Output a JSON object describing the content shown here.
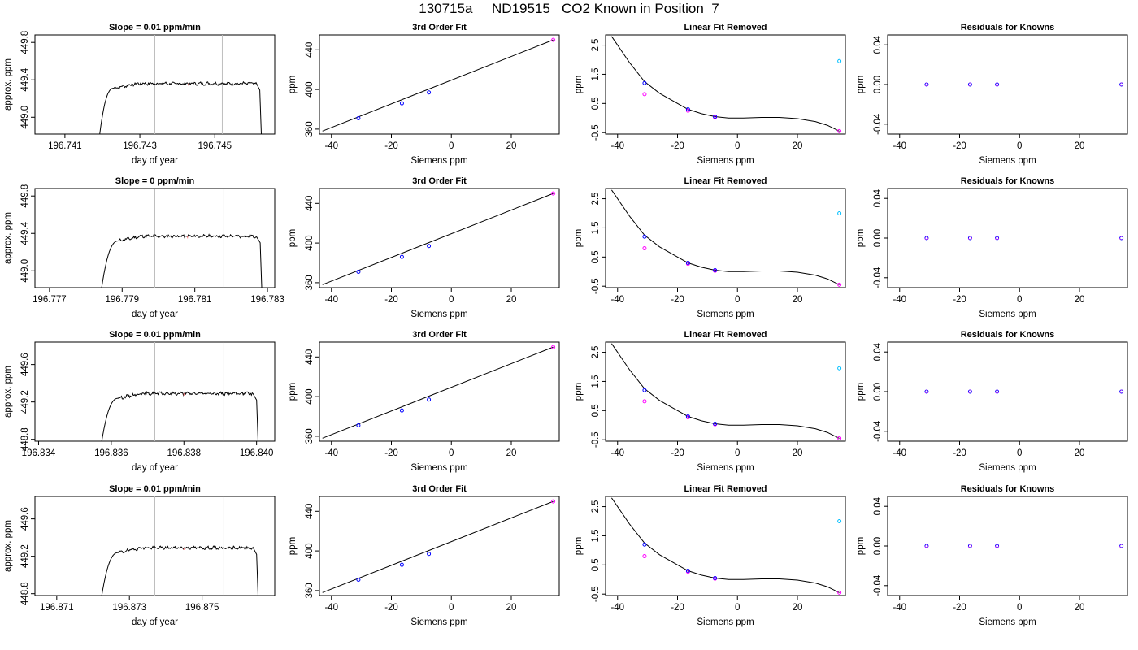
{
  "figure": {
    "title": "130715a     ND19515   CO2 Known in Position  7",
    "colors": {
      "trace": "#000000",
      "window_lines": "#bebebe",
      "tick_mark_1": "#ff7f7f",
      "blue_points": "#0000ff",
      "magenta_points": "#ff00ff",
      "cyan_points": "#00bfff",
      "fit_line": "#000000"
    }
  },
  "chart_data": [
    {
      "type": "line",
      "title": "Slope =  0.01  ppm/min",
      "xlabel": "day of year",
      "ylabel": "approx. ppm",
      "xlim": [
        196.7402,
        196.7466
      ],
      "ylim": [
        448.82,
        449.88
      ],
      "xticks": [
        "196.741",
        "196.743",
        "196.745"
      ],
      "xtick_values": [
        196.741,
        196.743,
        196.745
      ],
      "yticks": [
        "449.0",
        "449.4",
        "449.8"
      ],
      "ytick_values": [
        449.0,
        449.4,
        449.8
      ],
      "window_lines_x": [
        196.7434,
        196.7452
      ],
      "trace_ramp": {
        "x_start": 196.7419,
        "x_plateau": 196.7423,
        "x_end": 196.7461,
        "x_drop": 196.7462
      },
      "plateau_level": 449.35,
      "marker_x": 196.7443
    },
    {
      "type": "scatter",
      "title": "3rd Order Fit",
      "xlabel": "Siemens ppm",
      "ylabel": "ppm",
      "xlim": [
        -44,
        36
      ],
      "ylim": [
        355,
        455
      ],
      "xticks": [
        "-40",
        "-20",
        "0",
        "20"
      ],
      "xtick_values": [
        -40,
        -20,
        0,
        20
      ],
      "yticks": [
        "360",
        "400",
        "440"
      ],
      "ytick_values": [
        360,
        400,
        440
      ],
      "points": {
        "x": [
          -31,
          -16.5,
          -7.5,
          34
        ],
        "y": [
          371,
          386,
          397,
          450
        ]
      },
      "line": {
        "x": [
          -43,
          34
        ],
        "y": [
          358,
          450
        ]
      }
    },
    {
      "type": "scatter",
      "title": "Linear Fit Removed",
      "xlabel": "Siemens ppm",
      "ylabel": "ppm",
      "xlim": [
        -44,
        36
      ],
      "ylim": [
        -0.55,
        2.85
      ],
      "xticks": [
        "-40",
        "-20",
        "0",
        "20"
      ],
      "xtick_values": [
        -40,
        -20,
        0,
        20
      ],
      "yticks": [
        "-0.5",
        "0.5",
        "1.5",
        "2.5"
      ],
      "ytick_values": [
        -0.5,
        0.5,
        1.5,
        2.5
      ],
      "blue_points": {
        "x": [
          -31,
          -16.5,
          -7.5
        ],
        "y": [
          1.2,
          0.3,
          0.05
        ]
      },
      "magenta_points": {
        "x": [
          -31,
          -16.5,
          -7.5,
          34
        ],
        "y": [
          0.82,
          0.25,
          0.03,
          -0.45
        ]
      },
      "cyan_points": {
        "x": [
          34
        ],
        "y": [
          1.95
        ]
      },
      "curve": {
        "x": [
          -42,
          -36,
          -31,
          -26,
          -20,
          -16.5,
          -12,
          -7.5,
          -3,
          2,
          8,
          14,
          20,
          26,
          30,
          34
        ],
        "y": [
          2.8,
          1.9,
          1.25,
          0.85,
          0.5,
          0.3,
          0.15,
          0.05,
          0.0,
          0.0,
          0.02,
          0.02,
          -0.02,
          -0.12,
          -0.25,
          -0.45
        ]
      }
    },
    {
      "type": "scatter",
      "title": "Residuals for Knowns",
      "xlabel": "Siemens ppm",
      "ylabel": "ppm",
      "xlim": [
        -44,
        36
      ],
      "ylim": [
        -0.05,
        0.05
      ],
      "xticks": [
        "-40",
        "-20",
        "0",
        "20"
      ],
      "xtick_values": [
        -40,
        -20,
        0,
        20
      ],
      "yticks": [
        "-0.04",
        "0.00",
        "0.04"
      ],
      "ytick_values": [
        -0.04,
        0.0,
        0.04
      ],
      "points": {
        "x": [
          -31,
          -16.5,
          -7.5,
          34
        ],
        "y": [
          0,
          0,
          0,
          0
        ]
      }
    },
    {
      "type": "line",
      "title": "Slope =  0  ppm/min",
      "xlabel": "day of year",
      "ylabel": "approx. ppm",
      "xlim": [
        196.7766,
        196.7832
      ],
      "ylim": [
        448.82,
        449.88
      ],
      "xticks": [
        "196.777",
        "196.779",
        "196.781",
        "196.783"
      ],
      "xtick_values": [
        196.777,
        196.779,
        196.781,
        196.783
      ],
      "yticks": [
        "449.0",
        "449.4",
        "449.8"
      ],
      "ytick_values": [
        449.0,
        449.4,
        449.8
      ],
      "window_lines_x": [
        196.7799,
        196.7818
      ],
      "trace_ramp": {
        "x_start": 196.7784,
        "x_plateau": 196.7789,
        "x_end": 196.7827,
        "x_drop": 196.7828
      },
      "plateau_level": 449.36,
      "marker_x": 196.7808
    },
    {
      "type": "scatter",
      "title": "3rd Order Fit",
      "xlabel": "Siemens ppm",
      "ylabel": "ppm",
      "xlim": [
        -44,
        36
      ],
      "ylim": [
        355,
        455
      ],
      "xticks": [
        "-40",
        "-20",
        "0",
        "20"
      ],
      "xtick_values": [
        -40,
        -20,
        0,
        20
      ],
      "yticks": [
        "360",
        "400",
        "440"
      ],
      "ytick_values": [
        360,
        400,
        440
      ],
      "points": {
        "x": [
          -31,
          -16.5,
          -7.5,
          34
        ],
        "y": [
          371,
          386,
          397,
          450
        ]
      },
      "line": {
        "x": [
          -43,
          34
        ],
        "y": [
          358,
          450
        ]
      }
    },
    {
      "type": "scatter",
      "title": "Linear Fit Removed",
      "xlabel": "Siemens ppm",
      "ylabel": "ppm",
      "xlim": [
        -44,
        36
      ],
      "ylim": [
        -0.55,
        2.85
      ],
      "xticks": [
        "-40",
        "-20",
        "0",
        "20"
      ],
      "xtick_values": [
        -40,
        -20,
        0,
        20
      ],
      "yticks": [
        "-0.5",
        "0.5",
        "1.5",
        "2.5"
      ],
      "ytick_values": [
        -0.5,
        0.5,
        1.5,
        2.5
      ],
      "blue_points": {
        "x": [
          -31,
          -16.5,
          -7.5
        ],
        "y": [
          1.2,
          0.3,
          0.05
        ]
      },
      "magenta_points": {
        "x": [
          -31,
          -16.5,
          -7.5,
          34
        ],
        "y": [
          0.8,
          0.27,
          0.03,
          -0.45
        ]
      },
      "cyan_points": {
        "x": [
          34
        ],
        "y": [
          2.0
        ]
      },
      "curve": {
        "x": [
          -42,
          -36,
          -31,
          -26,
          -20,
          -16.5,
          -12,
          -7.5,
          -3,
          2,
          8,
          14,
          20,
          26,
          30,
          34
        ],
        "y": [
          2.8,
          1.9,
          1.25,
          0.85,
          0.5,
          0.3,
          0.15,
          0.05,
          0.0,
          0.0,
          0.02,
          0.02,
          -0.02,
          -0.12,
          -0.25,
          -0.45
        ]
      }
    },
    {
      "type": "scatter",
      "title": "Residuals for Knowns",
      "xlabel": "Siemens ppm",
      "ylabel": "ppm",
      "xlim": [
        -44,
        36
      ],
      "ylim": [
        -0.05,
        0.05
      ],
      "xticks": [
        "-40",
        "-20",
        "0",
        "20"
      ],
      "xtick_values": [
        -40,
        -20,
        0,
        20
      ],
      "yticks": [
        "-0.04",
        "0.00",
        "0.04"
      ],
      "ytick_values": [
        -0.04,
        0.0,
        0.04
      ],
      "points": {
        "x": [
          -31,
          -16.5,
          -7.5,
          34
        ],
        "y": [
          0,
          0,
          0,
          0
        ]
      }
    },
    {
      "type": "line",
      "title": "Slope =  0.01  ppm/min",
      "xlabel": "day of year",
      "ylabel": "approx. ppm",
      "xlim": [
        196.8339,
        196.8405
      ],
      "ylim": [
        448.78,
        449.84
      ],
      "xticks": [
        "196.834",
        "196.836",
        "196.838",
        "196.840"
      ],
      "xtick_values": [
        196.834,
        196.836,
        196.838,
        196.84
      ],
      "yticks": [
        "448.8",
        "449.2",
        "449.6"
      ],
      "ytick_values": [
        448.8,
        449.2,
        449.6
      ],
      "window_lines_x": [
        196.8372,
        196.8391
      ],
      "trace_ramp": {
        "x_start": 196.8357,
        "x_plateau": 196.8362,
        "x_end": 196.8399,
        "x_drop": 196.84
      },
      "plateau_level": 449.28,
      "marker_x": 196.838
    },
    {
      "type": "scatter",
      "title": "3rd Order Fit",
      "xlabel": "Siemens ppm",
      "ylabel": "ppm",
      "xlim": [
        -44,
        36
      ],
      "ylim": [
        355,
        455
      ],
      "xticks": [
        "-40",
        "-20",
        "0",
        "20"
      ],
      "xtick_values": [
        -40,
        -20,
        0,
        20
      ],
      "yticks": [
        "360",
        "400",
        "440"
      ],
      "ytick_values": [
        360,
        400,
        440
      ],
      "points": {
        "x": [
          -31,
          -16.5,
          -7.5,
          34
        ],
        "y": [
          371,
          386,
          397,
          450
        ]
      },
      "line": {
        "x": [
          -43,
          34
        ],
        "y": [
          358,
          450
        ]
      }
    },
    {
      "type": "scatter",
      "title": "Linear Fit Removed",
      "xlabel": "Siemens ppm",
      "ylabel": "ppm",
      "xlim": [
        -44,
        36
      ],
      "ylim": [
        -0.55,
        2.85
      ],
      "xticks": [
        "-40",
        "-20",
        "0",
        "20"
      ],
      "xtick_values": [
        -40,
        -20,
        0,
        20
      ],
      "yticks": [
        "-0.5",
        "0.5",
        "1.5",
        "2.5"
      ],
      "ytick_values": [
        -0.5,
        0.5,
        1.5,
        2.5
      ],
      "blue_points": {
        "x": [
          -31,
          -16.5,
          -7.5
        ],
        "y": [
          1.2,
          0.3,
          0.05
        ]
      },
      "magenta_points": {
        "x": [
          -31,
          -16.5,
          -7.5,
          34
        ],
        "y": [
          0.82,
          0.27,
          0.03,
          -0.45
        ]
      },
      "cyan_points": {
        "x": [
          34
        ],
        "y": [
          1.95
        ]
      },
      "curve": {
        "x": [
          -42,
          -36,
          -31,
          -26,
          -20,
          -16.5,
          -12,
          -7.5,
          -3,
          2,
          8,
          14,
          20,
          26,
          30,
          34
        ],
        "y": [
          2.8,
          1.9,
          1.25,
          0.85,
          0.5,
          0.3,
          0.15,
          0.05,
          0.0,
          0.0,
          0.02,
          0.02,
          -0.02,
          -0.12,
          -0.25,
          -0.45
        ]
      }
    },
    {
      "type": "scatter",
      "title": "Residuals for Knowns",
      "xlabel": "Siemens ppm",
      "ylabel": "ppm",
      "xlim": [
        -44,
        36
      ],
      "ylim": [
        -0.05,
        0.05
      ],
      "xticks": [
        "-40",
        "-20",
        "0",
        "20"
      ],
      "xtick_values": [
        -40,
        -20,
        0,
        20
      ],
      "yticks": [
        "-0.04",
        "0.00",
        "0.04"
      ],
      "ytick_values": [
        -0.04,
        0.0,
        0.04
      ],
      "points": {
        "x": [
          -31,
          -16.5,
          -7.5,
          34
        ],
        "y": [
          0,
          0,
          0,
          0
        ]
      }
    },
    {
      "type": "line",
      "title": "Slope =  0.01  ppm/min",
      "xlabel": "day of year",
      "ylabel": "approx. ppm",
      "xlim": [
        196.8704,
        196.877
      ],
      "ylim": [
        448.78,
        449.84
      ],
      "xticks": [
        "196.871",
        "196.873",
        "196.875"
      ],
      "xtick_values": [
        196.871,
        196.873,
        196.875
      ],
      "yticks": [
        "448.8",
        "449.2",
        "449.6"
      ],
      "ytick_values": [
        448.8,
        449.2,
        449.6
      ],
      "window_lines_x": [
        196.8737,
        196.8756
      ],
      "trace_ramp": {
        "x_start": 196.8722,
        "x_plateau": 196.8727,
        "x_end": 196.8764,
        "x_drop": 196.8765
      },
      "plateau_level": 449.28,
      "marker_x": 196.8745
    },
    {
      "type": "scatter",
      "title": "3rd Order Fit",
      "xlabel": "Siemens ppm",
      "ylabel": "ppm",
      "xlim": [
        -44,
        36
      ],
      "ylim": [
        355,
        455
      ],
      "xticks": [
        "-40",
        "-20",
        "0",
        "20"
      ],
      "xtick_values": [
        -40,
        -20,
        0,
        20
      ],
      "yticks": [
        "360",
        "400",
        "440"
      ],
      "ytick_values": [
        360,
        400,
        440
      ],
      "points": {
        "x": [
          -31,
          -16.5,
          -7.5,
          34
        ],
        "y": [
          371,
          386,
          397,
          450
        ]
      },
      "line": {
        "x": [
          -43,
          34
        ],
        "y": [
          358,
          450
        ]
      }
    },
    {
      "type": "scatter",
      "title": "Linear Fit Removed",
      "xlabel": "Siemens ppm",
      "ylabel": "ppm",
      "xlim": [
        -44,
        36
      ],
      "ylim": [
        -0.55,
        2.85
      ],
      "xticks": [
        "-40",
        "-20",
        "0",
        "20"
      ],
      "xtick_values": [
        -40,
        -20,
        0,
        20
      ],
      "yticks": [
        "-0.5",
        "0.5",
        "1.5",
        "2.5"
      ],
      "ytick_values": [
        -0.5,
        0.5,
        1.5,
        2.5
      ],
      "blue_points": {
        "x": [
          -31,
          -16.5,
          -7.5
        ],
        "y": [
          1.2,
          0.3,
          0.05
        ]
      },
      "magenta_points": {
        "x": [
          -31,
          -16.5,
          -7.5,
          34
        ],
        "y": [
          0.8,
          0.27,
          0.03,
          -0.45
        ]
      },
      "cyan_points": {
        "x": [
          34
        ],
        "y": [
          2.0
        ]
      },
      "curve": {
        "x": [
          -42,
          -36,
          -31,
          -26,
          -20,
          -16.5,
          -12,
          -7.5,
          -3,
          2,
          8,
          14,
          20,
          26,
          30,
          34
        ],
        "y": [
          2.8,
          1.9,
          1.25,
          0.85,
          0.5,
          0.3,
          0.15,
          0.05,
          0.0,
          0.0,
          0.02,
          0.02,
          -0.02,
          -0.12,
          -0.25,
          -0.45
        ]
      }
    },
    {
      "type": "scatter",
      "title": "Residuals for Knowns",
      "xlabel": "Siemens ppm",
      "ylabel": "ppm",
      "xlim": [
        -44,
        36
      ],
      "ylim": [
        -0.05,
        0.05
      ],
      "xticks": [
        "-40",
        "-20",
        "0",
        "20"
      ],
      "xtick_values": [
        -40,
        -20,
        0,
        20
      ],
      "yticks": [
        "-0.04",
        "0.00",
        "0.04"
      ],
      "ytick_values": [
        -0.04,
        0.0,
        0.04
      ],
      "points": {
        "x": [
          -31,
          -16.5,
          -7.5,
          34
        ],
        "y": [
          0,
          0,
          0,
          0
        ]
      }
    }
  ]
}
